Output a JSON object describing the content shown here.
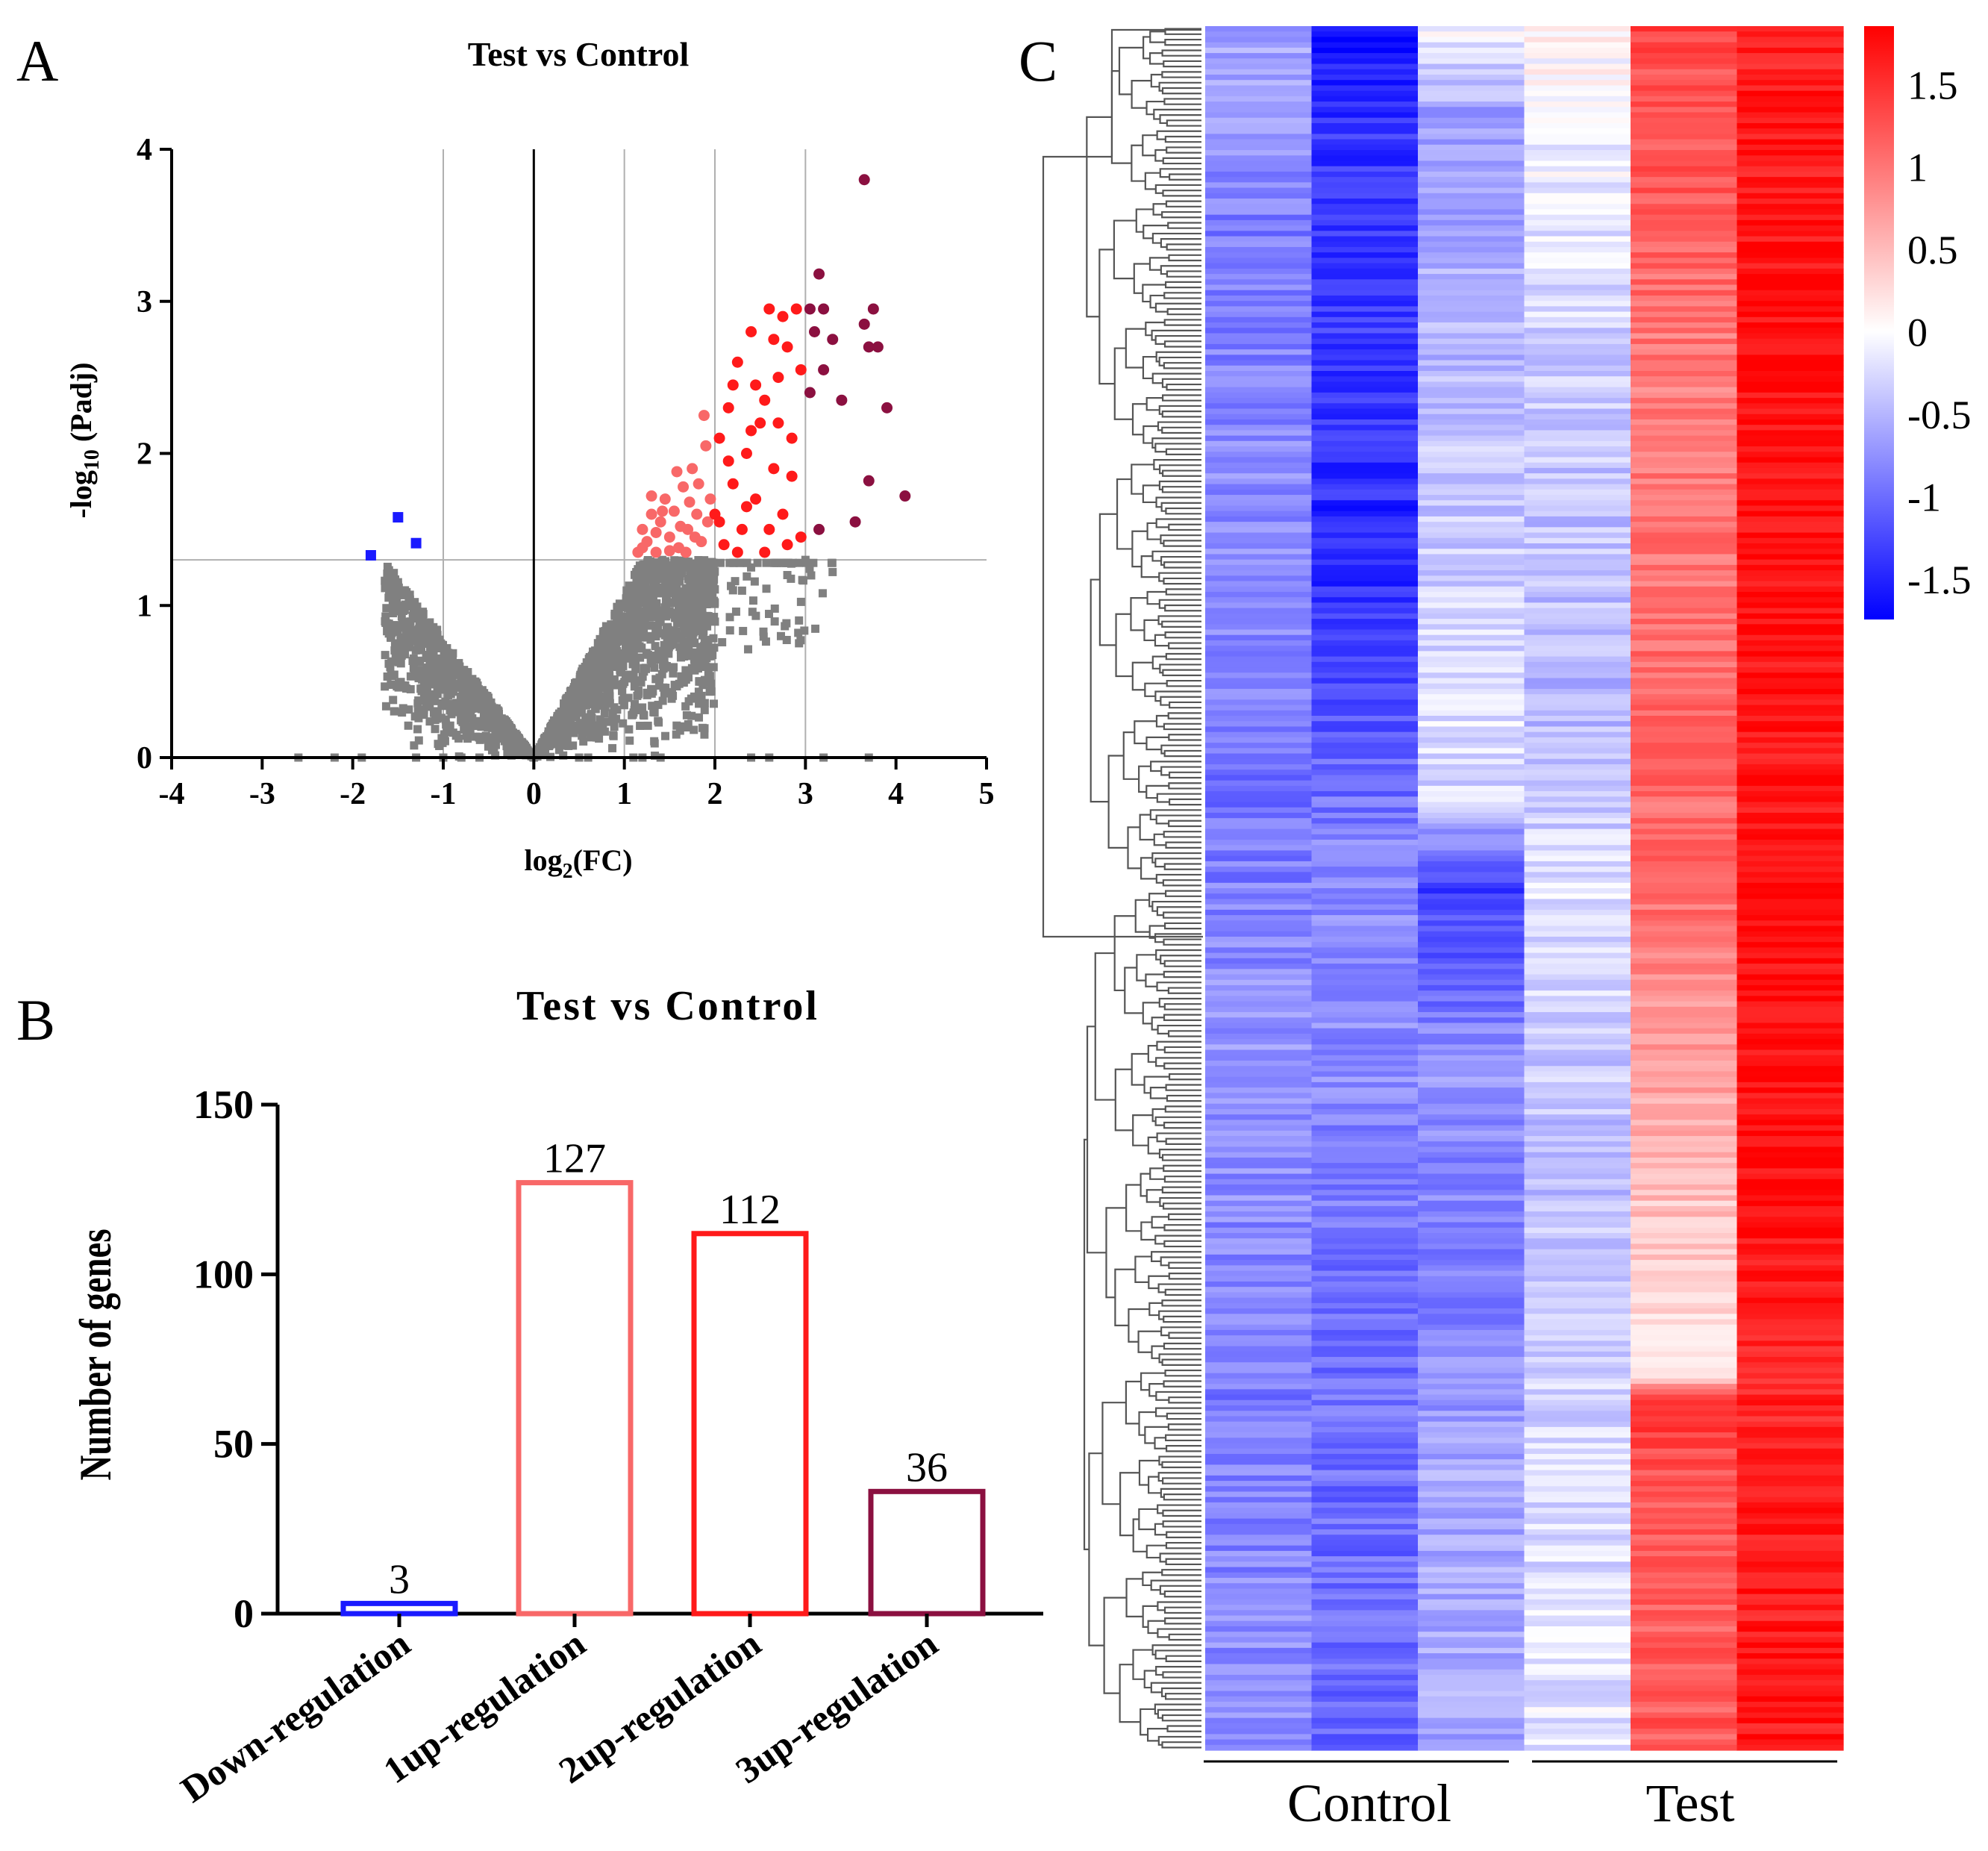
{
  "panel_labels": {
    "a": "A",
    "b": "B",
    "c": "C"
  },
  "colors": {
    "gray": "#808080",
    "down": "#1a1aff",
    "up1": "#f86868",
    "up2": "#ff1a1a",
    "up3": "#8b1040",
    "heat_low": "#0000ff",
    "heat_mid": "#ffffff",
    "heat_high": "#ff0000"
  },
  "chart_data": [
    {
      "type": "scatter",
      "title": "Test vs Control",
      "xlabel_main": "log",
      "xlabel_sub": "2",
      "xlabel_tail": "(FC)",
      "ylabel_main": "-log",
      "ylabel_sub": "10",
      "ylabel_tail": " (Padj)",
      "xlim": [
        -4,
        5
      ],
      "ylim": [
        0,
        4
      ],
      "x_ticks": [
        "-4",
        "-3",
        "-2",
        "-1",
        "0",
        "1",
        "2",
        "3",
        "4",
        "5"
      ],
      "y_ticks": [
        "0",
        "1",
        "2",
        "3",
        "4"
      ],
      "vertical_gridlines": [
        -1,
        0,
        1,
        2,
        3
      ],
      "threshold_y": 1.3,
      "series": [
        {
          "name": "Down-regulation",
          "color_key": "down",
          "marker": "square",
          "points": [
            [
              -1.8,
              1.33
            ],
            [
              -1.5,
              1.58
            ],
            [
              -1.3,
              1.41
            ]
          ]
        },
        {
          "name": "1up-regulation",
          "color_key": "up1",
          "marker": "circle",
          "points": [
            [
              1.15,
              1.35
            ],
            [
              1.2,
              1.5
            ],
            [
              1.25,
              1.42
            ],
            [
              1.3,
              1.6
            ],
            [
              1.35,
              1.35
            ],
            [
              1.4,
              1.55
            ],
            [
              1.45,
              1.7
            ],
            [
              1.5,
              1.45
            ],
            [
              1.55,
              1.62
            ],
            [
              1.6,
              1.38
            ],
            [
              1.65,
              1.78
            ],
            [
              1.7,
              1.5
            ],
            [
              1.75,
              1.9
            ],
            [
              1.8,
              1.6
            ],
            [
              1.85,
              1.42
            ],
            [
              1.9,
              2.05
            ],
            [
              1.95,
              1.7
            ],
            [
              1.2,
              1.38
            ],
            [
              1.35,
              1.48
            ],
            [
              1.5,
              1.36
            ],
            [
              1.62,
              1.52
            ],
            [
              1.72,
              1.68
            ],
            [
              1.82,
              1.8
            ],
            [
              1.88,
              2.25
            ],
            [
              1.78,
              1.45
            ],
            [
              1.58,
              1.88
            ],
            [
              1.42,
              1.62
            ],
            [
              1.68,
              1.35
            ],
            [
              1.92,
              1.55
            ],
            [
              1.3,
              1.72
            ]
          ]
        },
        {
          "name": "2up-regulation",
          "color_key": "up2",
          "marker": "circle",
          "points": [
            [
              2.0,
              1.6
            ],
            [
              2.05,
              2.1
            ],
            [
              2.1,
              1.4
            ],
            [
              2.15,
              2.3
            ],
            [
              2.2,
              1.8
            ],
            [
              2.25,
              2.6
            ],
            [
              2.3,
              1.5
            ],
            [
              2.35,
              2.0
            ],
            [
              2.4,
              2.8
            ],
            [
              2.45,
              1.7
            ],
            [
              2.5,
              2.2
            ],
            [
              2.55,
              1.35
            ],
            [
              2.6,
              2.95
            ],
            [
              2.65,
              1.9
            ],
            [
              2.7,
              2.5
            ],
            [
              2.75,
              1.6
            ],
            [
              2.8,
              2.7
            ],
            [
              2.85,
              2.1
            ],
            [
              2.9,
              2.95
            ],
            [
              2.95,
              1.45
            ],
            [
              2.25,
              1.35
            ],
            [
              2.45,
              2.45
            ],
            [
              2.65,
              2.75
            ],
            [
              2.85,
              1.85
            ],
            [
              2.15,
              1.95
            ],
            [
              2.55,
              2.35
            ],
            [
              2.75,
              2.9
            ],
            [
              2.95,
              2.55
            ],
            [
              2.35,
              1.65
            ],
            [
              2.05,
              1.55
            ],
            [
              2.6,
              1.5
            ],
            [
              2.8,
              1.4
            ],
            [
              2.4,
              2.15
            ],
            [
              2.2,
              2.45
            ],
            [
              2.7,
              2.2
            ]
          ]
        },
        {
          "name": "3up-regulation",
          "color_key": "up3",
          "marker": "circle",
          "points": [
            [
              3.65,
              3.8
            ],
            [
              3.15,
              3.18
            ],
            [
              3.05,
              2.95
            ],
            [
              3.2,
              2.95
            ],
            [
              3.1,
              2.8
            ],
            [
              3.3,
              2.75
            ],
            [
              3.75,
              2.95
            ],
            [
              3.7,
              2.7
            ],
            [
              3.65,
              2.85
            ],
            [
              3.8,
              2.7
            ],
            [
              3.2,
              2.55
            ],
            [
              3.4,
              2.35
            ],
            [
              3.9,
              2.3
            ],
            [
              3.7,
              1.82
            ],
            [
              3.55,
              1.55
            ],
            [
              4.1,
              1.72
            ],
            [
              3.15,
              1.5
            ],
            [
              3.05,
              2.4
            ]
          ]
        }
      ],
      "gray_points_note": "non-significant genes"
    },
    {
      "type": "bar",
      "title": "Test vs Control",
      "ylabel": "Number of genes",
      "ylim": [
        0,
        150
      ],
      "y_ticks": [
        "0",
        "50",
        "100",
        "150"
      ],
      "categories": [
        "Down-regulation",
        "1up-regulation",
        "2up-regulation",
        "3up-regulation"
      ],
      "values": [
        3,
        127,
        112,
        36
      ],
      "color_keys": [
        "down",
        "up1",
        "up2",
        "up3"
      ]
    },
    {
      "type": "heatmap",
      "groups": [
        "Control",
        "Test"
      ],
      "n_columns": 6,
      "colorbar_range": [
        -1.75,
        1.85
      ],
      "colorbar_ticks": [
        "1.5",
        "1",
        "0.5",
        "0",
        "-0.5",
        "-1",
        "-1.5"
      ],
      "colorbar_tick_values": [
        1.5,
        1,
        0.5,
        0,
        -0.5,
        -1,
        -1.5
      ],
      "column_profiles": [
        [
          [
            0,
            -0.6
          ],
          [
            0.12,
            -0.9
          ],
          [
            0.3,
            -0.75
          ],
          [
            0.45,
            -0.95
          ],
          [
            0.6,
            -0.7
          ],
          [
            0.8,
            -0.9
          ],
          [
            1,
            -0.75
          ]
        ],
        [
          [
            0,
            -1.7
          ],
          [
            0.05,
            -1.4
          ],
          [
            0.2,
            -1.35
          ],
          [
            0.3,
            -1.5
          ],
          [
            0.4,
            -1.2
          ],
          [
            0.5,
            -0.75
          ],
          [
            0.62,
            -0.8
          ],
          [
            0.7,
            -0.95
          ],
          [
            0.85,
            -1.0
          ],
          [
            1,
            -1.05
          ]
        ],
        [
          [
            0,
            -0.05
          ],
          [
            0.05,
            -0.65
          ],
          [
            0.3,
            -0.35
          ],
          [
            0.4,
            -0.2
          ],
          [
            0.45,
            -0.3
          ],
          [
            0.5,
            -1.35
          ],
          [
            0.6,
            -0.75
          ],
          [
            0.72,
            -0.9
          ],
          [
            0.85,
            -0.6
          ],
          [
            1,
            -0.6
          ]
        ],
        [
          [
            0,
            0.05
          ],
          [
            0.2,
            -0.35
          ],
          [
            0.4,
            -0.5
          ],
          [
            0.5,
            -0.2
          ],
          [
            0.65,
            -0.45
          ],
          [
            0.8,
            -0.3
          ],
          [
            1,
            -0.15
          ]
        ],
        [
          [
            0,
            1.35
          ],
          [
            0.2,
            0.95
          ],
          [
            0.4,
            1.05
          ],
          [
            0.5,
            1.1
          ],
          [
            0.6,
            0.7
          ],
          [
            0.65,
            0.55
          ],
          [
            0.78,
            0.1
          ],
          [
            0.8,
            1.4
          ],
          [
            0.9,
            1.15
          ],
          [
            1,
            1.2
          ]
        ],
        [
          [
            0,
            1.6
          ],
          [
            0.2,
            1.78
          ],
          [
            0.4,
            1.72
          ],
          [
            0.5,
            1.75
          ],
          [
            0.65,
            1.8
          ],
          [
            0.8,
            1.6
          ],
          [
            1,
            1.7
          ]
        ]
      ]
    }
  ]
}
